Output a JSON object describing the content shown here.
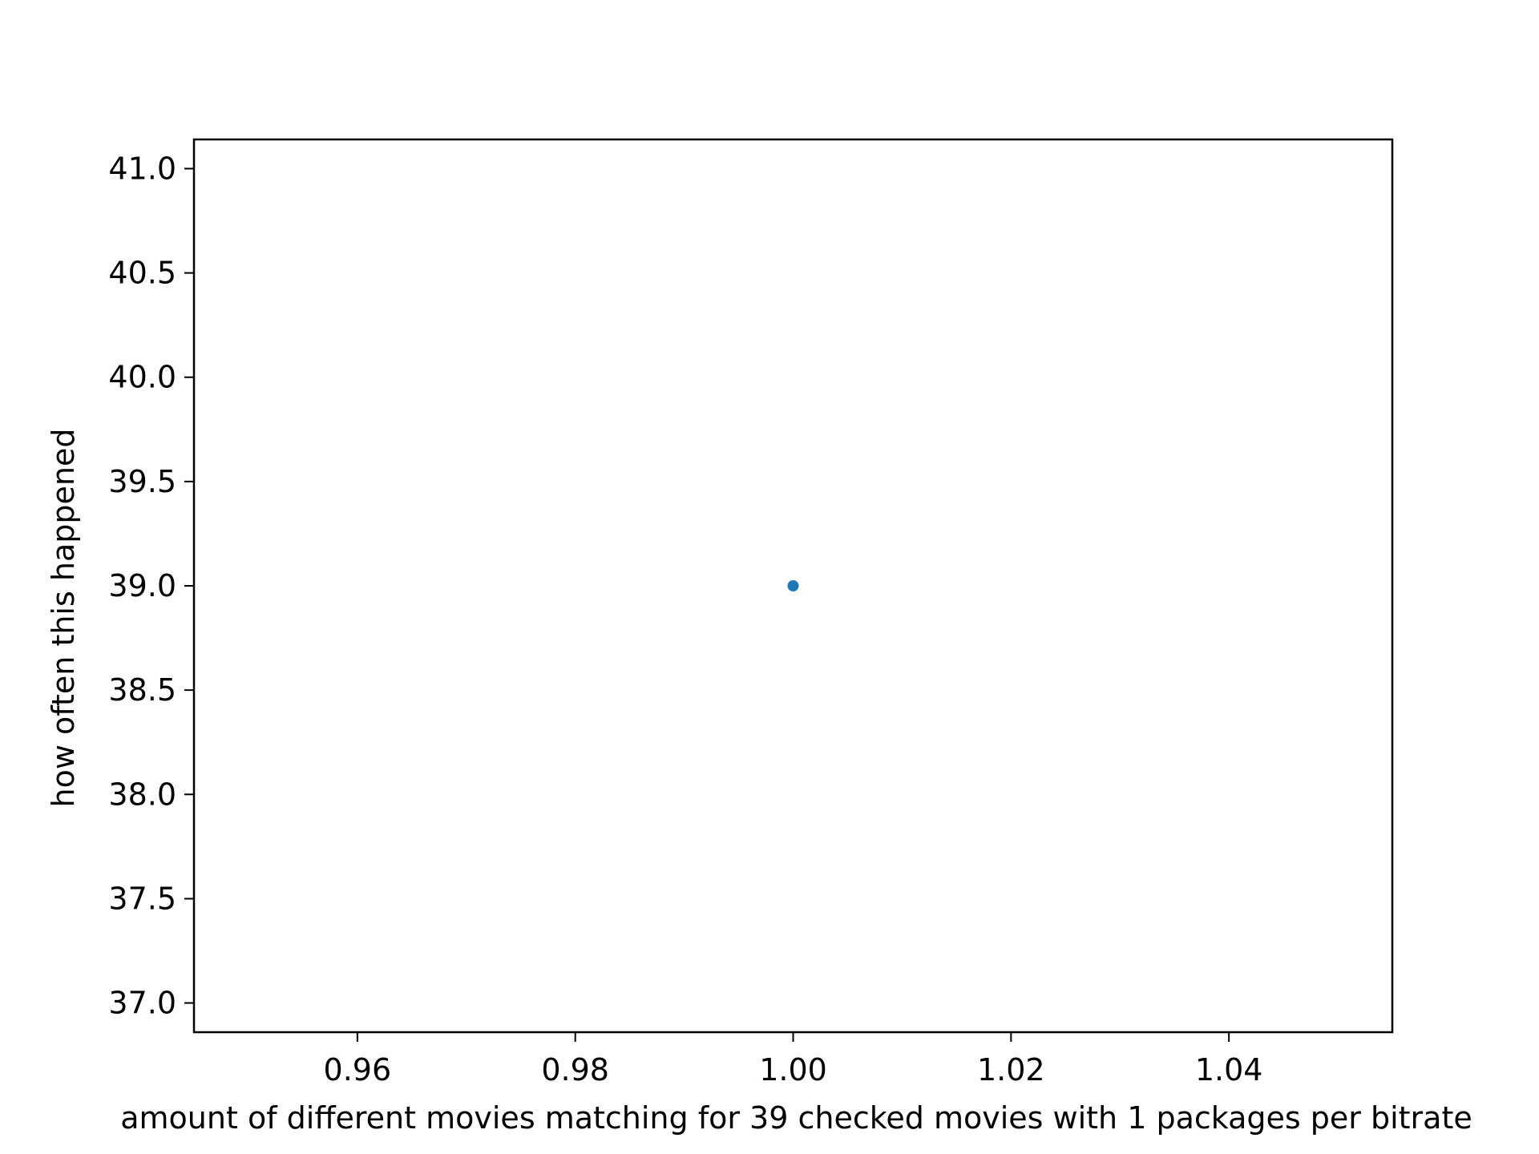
{
  "chart_data": {
    "type": "scatter",
    "title": "",
    "xlabel": "amount of different movies matching for 39 checked movies with 1 packages per bitrate",
    "ylabel": "how often this happened",
    "xlim": [
      0.945,
      1.055
    ],
    "ylim": [
      36.86,
      41.14
    ],
    "xticks": [
      0.96,
      0.98,
      1.0,
      1.02,
      1.04
    ],
    "xtick_labels": [
      "0.96",
      "0.98",
      "1.00",
      "1.02",
      "1.04"
    ],
    "yticks": [
      37.0,
      37.5,
      38.0,
      38.5,
      39.0,
      39.5,
      40.0,
      40.5,
      41.0
    ],
    "ytick_labels": [
      "37.0",
      "37.5",
      "38.0",
      "38.5",
      "39.0",
      "39.5",
      "40.0",
      "40.5",
      "41.0"
    ],
    "grid": false,
    "series": [
      {
        "x": [
          1.0
        ],
        "y": [
          39.0
        ],
        "color": "#1f77b4"
      }
    ]
  }
}
